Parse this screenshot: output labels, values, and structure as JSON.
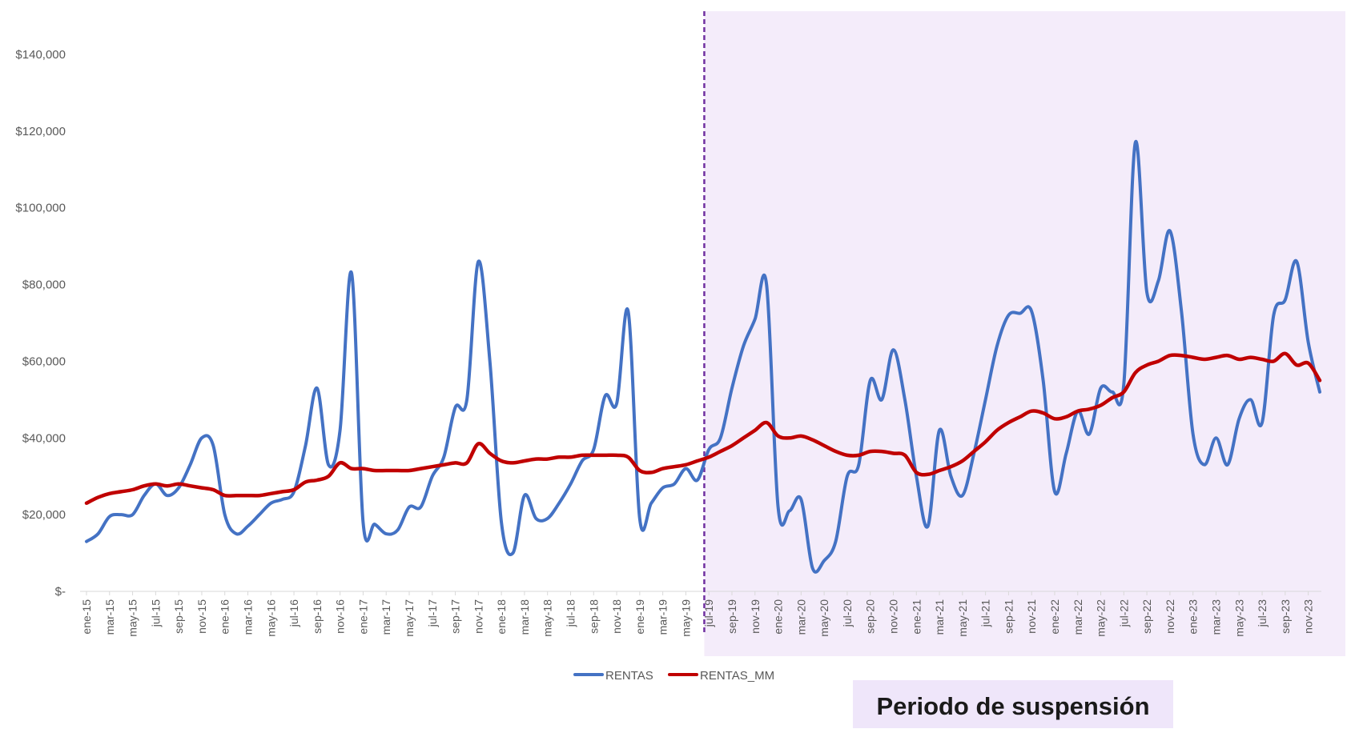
{
  "chart_data": {
    "type": "line",
    "title": "",
    "xlabel": "",
    "ylabel": "",
    "ylim": [
      0,
      140000
    ],
    "y_ticks": [
      0,
      20000,
      40000,
      60000,
      80000,
      100000,
      120000,
      140000
    ],
    "y_tick_labels": [
      "$-",
      "$20,000",
      "$40,000",
      "$60,000",
      "$80,000",
      "$100,000",
      "$120,000",
      "$140,000"
    ],
    "x": [
      "ene-15",
      "feb-15",
      "mar-15",
      "abr-15",
      "may-15",
      "jun-15",
      "jul-15",
      "ago-15",
      "sep-15",
      "oct-15",
      "nov-15",
      "dic-15",
      "ene-16",
      "feb-16",
      "mar-16",
      "abr-16",
      "may-16",
      "jun-16",
      "jul-16",
      "ago-16",
      "sep-16",
      "oct-16",
      "nov-16",
      "dic-16",
      "ene-17",
      "feb-17",
      "mar-17",
      "abr-17",
      "may-17",
      "jun-17",
      "jul-17",
      "ago-17",
      "sep-17",
      "oct-17",
      "nov-17",
      "dic-17",
      "ene-18",
      "feb-18",
      "mar-18",
      "abr-18",
      "may-18",
      "jun-18",
      "jul-18",
      "ago-18",
      "sep-18",
      "oct-18",
      "nov-18",
      "dic-18",
      "ene-19",
      "feb-19",
      "mar-19",
      "abr-19",
      "may-19",
      "jun-19",
      "jul-19",
      "ago-19",
      "sep-19",
      "oct-19",
      "nov-19",
      "dic-19",
      "ene-20",
      "feb-20",
      "mar-20",
      "abr-20",
      "may-20",
      "jun-20",
      "jul-20",
      "ago-20",
      "sep-20",
      "oct-20",
      "nov-20",
      "dic-20",
      "ene-21",
      "feb-21",
      "mar-21",
      "abr-21",
      "may-21",
      "jun-21",
      "jul-21",
      "ago-21",
      "sep-21",
      "oct-21",
      "nov-21",
      "dic-21",
      "ene-22",
      "feb-22",
      "mar-22",
      "abr-22",
      "may-22",
      "jun-22",
      "jul-22",
      "ago-22",
      "sep-22",
      "oct-22",
      "nov-22",
      "dic-22",
      "ene-23",
      "feb-23",
      "mar-23",
      "abr-23",
      "may-23",
      "jun-23",
      "jul-23",
      "ago-23",
      "sep-23",
      "oct-23",
      "nov-23",
      "dic-23"
    ],
    "x_tick_labels": [
      "ene-15",
      "mar-15",
      "may-15",
      "jul-15",
      "sep-15",
      "nov-15",
      "ene-16",
      "mar-16",
      "may-16",
      "jul-16",
      "sep-16",
      "nov-16",
      "ene-17",
      "mar-17",
      "may-17",
      "jul-17",
      "sep-17",
      "nov-17",
      "ene-18",
      "mar-18",
      "may-18",
      "jul-18",
      "sep-18",
      "nov-18",
      "ene-19",
      "mar-19",
      "may-19",
      "jul-19",
      "sep-19",
      "nov-19",
      "ene-20",
      "mar-20",
      "may-20",
      "jul-20",
      "sep-20",
      "nov-20",
      "ene-21",
      "mar-21",
      "may-21",
      "jul-21",
      "sep-21",
      "nov-21",
      "ene-22",
      "mar-22",
      "may-22",
      "jul-22",
      "sep-22",
      "nov-22",
      "ene-23",
      "mar-23",
      "may-23",
      "jul-23",
      "sep-23",
      "nov-23"
    ],
    "series": [
      {
        "name": "RENTAS",
        "color": "#4472C4",
        "values": [
          13000,
          15000,
          19500,
          20000,
          20000,
          25000,
          28000,
          25000,
          27000,
          33000,
          40000,
          38000,
          20000,
          15000,
          17000,
          20000,
          23000,
          24000,
          26000,
          38000,
          53000,
          33000,
          42000,
          83000,
          18000,
          17500,
          15000,
          16000,
          22000,
          22000,
          30000,
          35000,
          48000,
          50000,
          86000,
          60000,
          18000,
          10000,
          25000,
          19000,
          19000,
          23000,
          28000,
          34000,
          37000,
          51000,
          49000,
          73000,
          19000,
          23000,
          27000,
          28000,
          32000,
          29000,
          37000,
          40000,
          53000,
          64000,
          71000,
          80000,
          22000,
          21000,
          24000,
          6000,
          8000,
          13000,
          30000,
          33000,
          55000,
          50000,
          63000,
          50000,
          30000,
          17000,
          42000,
          30000,
          25000,
          36000,
          50000,
          64000,
          72000,
          72500,
          73000,
          55000,
          26000,
          36000,
          47000,
          41000,
          53000,
          52000,
          54000,
          117000,
          78000,
          81000,
          94000,
          73000,
          41000,
          33000,
          40000,
          33000,
          45000,
          50000,
          44000,
          72000,
          76000,
          86000,
          65000,
          52000
        ]
      },
      {
        "name": "RENTAS_MM",
        "color": "#C00000",
        "values": [
          23000,
          24500,
          25500,
          26000,
          26500,
          27500,
          28000,
          27500,
          28000,
          27500,
          27000,
          26500,
          25000,
          25000,
          25000,
          25000,
          25500,
          26000,
          26500,
          28500,
          29000,
          30000,
          33500,
          32000,
          32000,
          31500,
          31500,
          31500,
          31500,
          32000,
          32500,
          33000,
          33500,
          33500,
          38500,
          36000,
          34000,
          33500,
          34000,
          34500,
          34500,
          35000,
          35000,
          35500,
          35500,
          35500,
          35500,
          35000,
          31500,
          31000,
          32000,
          32500,
          33000,
          34000,
          35000,
          36500,
          38000,
          40000,
          42000,
          44000,
          40500,
          40000,
          40500,
          39500,
          38000,
          36500,
          35500,
          35500,
          36500,
          36500,
          36000,
          35500,
          31000,
          30500,
          31500,
          32500,
          34000,
          36500,
          39000,
          42000,
          44000,
          45500,
          47000,
          46500,
          45000,
          45500,
          47000,
          47500,
          48500,
          50500,
          52000,
          57000,
          59000,
          60000,
          61500,
          61500,
          61000,
          60500,
          61000,
          61500,
          60500,
          61000,
          60500,
          60000,
          62000,
          59000,
          59500,
          55000
        ]
      }
    ],
    "divider_after": "jun-19",
    "shaded_region": {
      "from": "jul-19",
      "to": "dic-23",
      "color": "#F4ECFA"
    },
    "divider_color": "#7030A0",
    "annotation": "Periodo de suspensión",
    "legend": [
      "RENTAS",
      "RENTAS_MM"
    ],
    "legend_position": "bottom"
  }
}
